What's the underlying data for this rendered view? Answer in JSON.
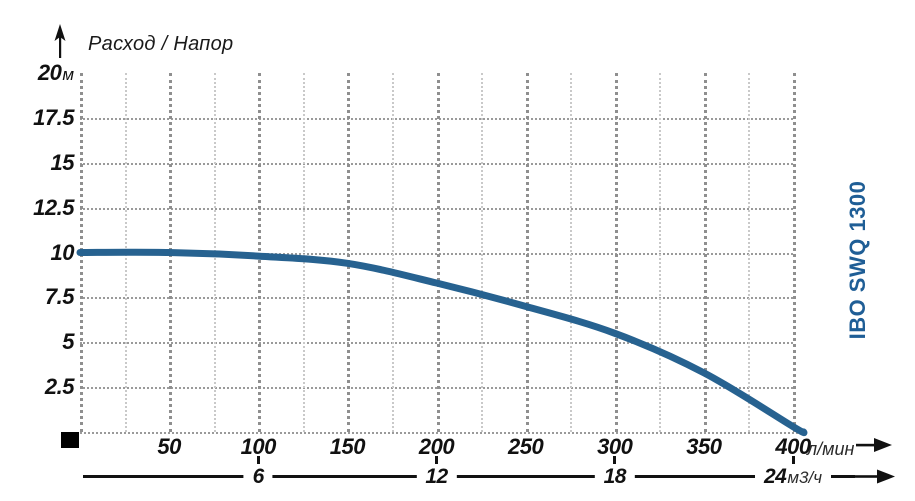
{
  "title": {
    "text": "Расход / Напор"
  },
  "pump_label": "IBO SWQ 1300",
  "axes": {
    "y_unit": "м",
    "x_primary_unit": "л/мин",
    "x_secondary_unit": "м3/ч"
  },
  "colors": {
    "curve": "#276290",
    "pump_label": "#1F5E96",
    "grid_major": "#8f8f8f",
    "grid_minor": "#c9c9c9",
    "grid_horizontal": "#9a9a9a",
    "text": "#111111"
  },
  "chart_data": {
    "type": "line",
    "title": "Расход / Напор",
    "xlabel": "л/мин",
    "xlabel_secondary": "м3/ч",
    "ylabel": "м",
    "x_range": [
      0,
      400
    ],
    "y_range": [
      0,
      20
    ],
    "y_ticks": [
      20,
      17.5,
      15,
      12.5,
      10,
      7.5,
      5,
      2.5
    ],
    "x_ticks_lpm": [
      50,
      100,
      150,
      200,
      250,
      300,
      350,
      400
    ],
    "x_ticks_m3h": [
      6,
      12,
      18,
      24
    ],
    "grid": true,
    "legend_position": "right-rotated",
    "series": [
      {
        "name": "IBO SWQ 1300",
        "color": "#276290",
        "points_lpm_vs_m": [
          [
            0,
            10
          ],
          [
            50,
            10
          ],
          [
            100,
            9.8
          ],
          [
            150,
            9.4
          ],
          [
            200,
            8.3
          ],
          [
            250,
            7.0
          ],
          [
            300,
            5.5
          ],
          [
            350,
            3.3
          ],
          [
            400,
            0.3
          ],
          [
            406,
            0
          ]
        ]
      }
    ]
  }
}
